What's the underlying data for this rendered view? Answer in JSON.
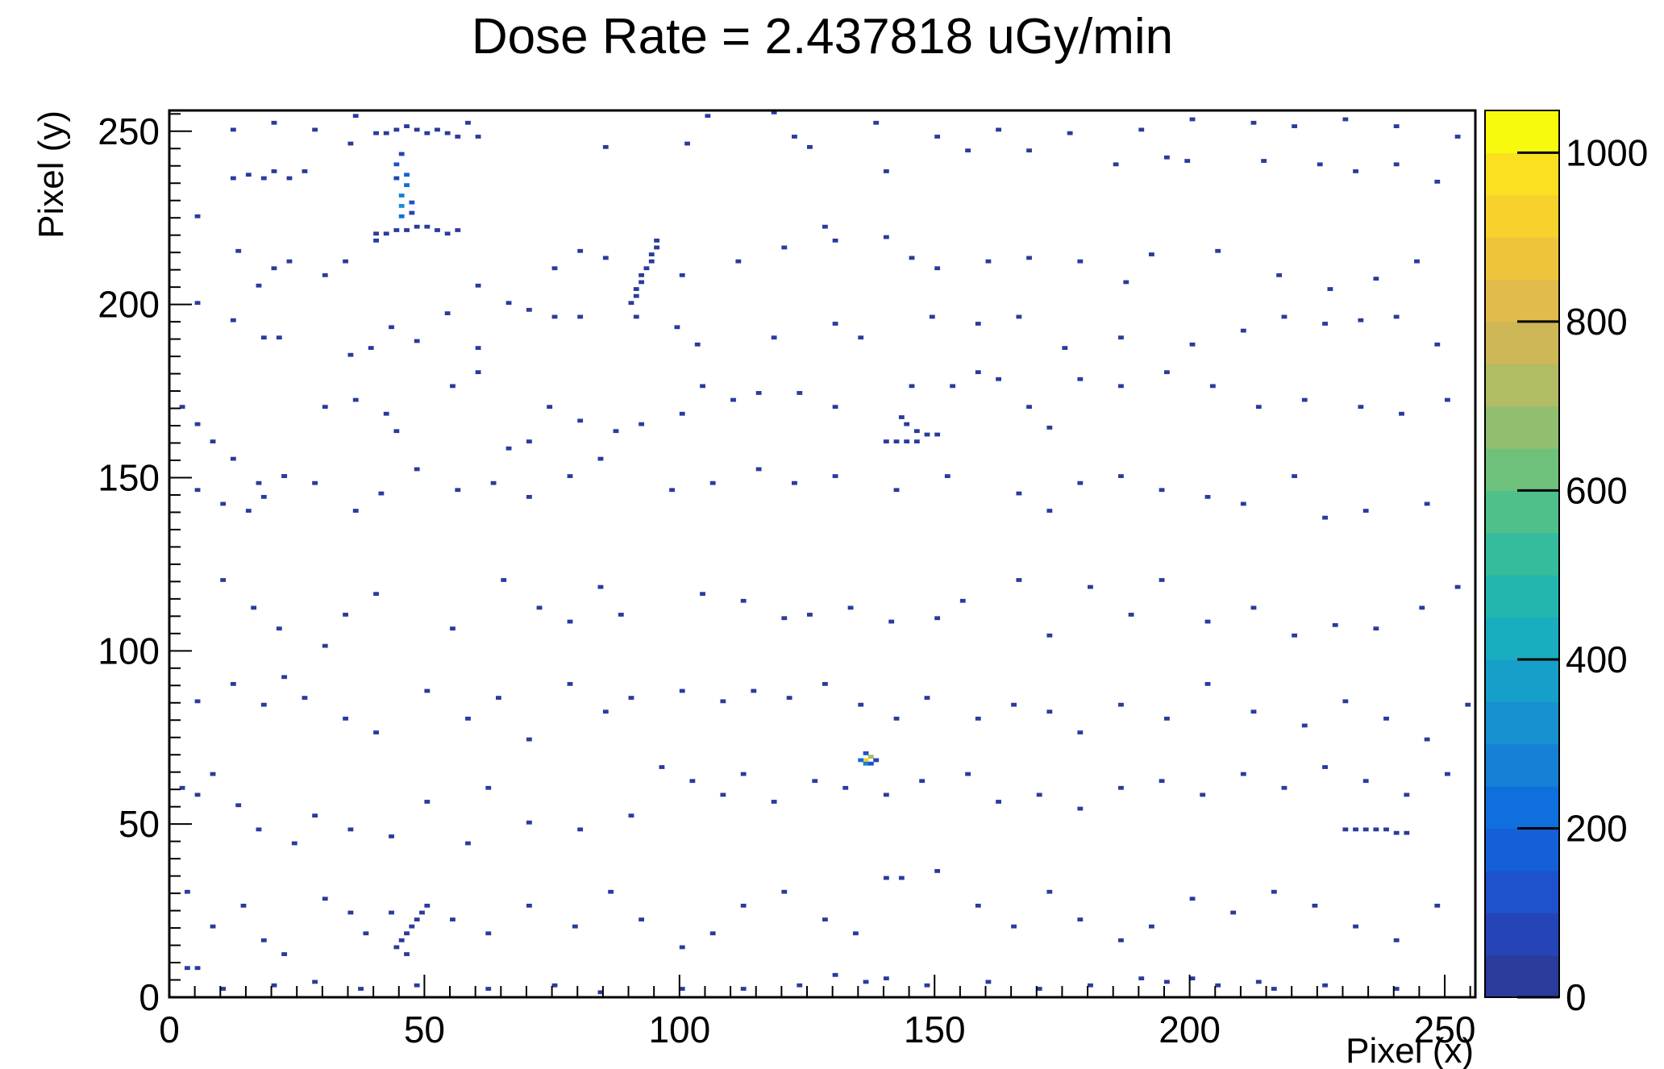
{
  "chart_data": {
    "type": "heatmap",
    "title": "Dose Rate = 2.437818 uGy/min",
    "xlabel": "Pixel (x)",
    "ylabel": "Pixel (y)",
    "xlim": [
      0,
      256
    ],
    "ylim": [
      0,
      256
    ],
    "x_ticks": [
      0,
      50,
      100,
      150,
      200,
      250
    ],
    "y_ticks": [
      0,
      50,
      100,
      150,
      200,
      250
    ],
    "x_tick_labels": [
      "0",
      "50",
      "100",
      "150",
      "200",
      "250"
    ],
    "y_tick_labels": [
      "0",
      "50",
      "100",
      "150",
      "200",
      "250"
    ],
    "colorbar": {
      "zlim": [
        0,
        1050
      ],
      "ticks": [
        0,
        200,
        400,
        600,
        800,
        1000
      ],
      "tick_labels": [
        "0",
        "200",
        "400",
        "600",
        "800",
        "1000"
      ],
      "palette": [
        "#2a3b9c",
        "#2444b8",
        "#1d52cc",
        "#1560d8",
        "#0f6fdc",
        "#1480d6",
        "#1790cf",
        "#169fc9",
        "#1aacbf",
        "#22b6ae",
        "#34bc9c",
        "#4fc08a",
        "#6ec17b",
        "#91bf6f",
        "#b1bc63",
        "#cdb757",
        "#e1bb4c",
        "#efc43d",
        "#f8d12d",
        "#fbe01f",
        "#f8fa0e"
      ]
    },
    "grid": false,
    "legend": "none",
    "points": [
      [
        45,
        225,
        220
      ],
      [
        45,
        228,
        300
      ],
      [
        45,
        231,
        260
      ],
      [
        46,
        234,
        230
      ],
      [
        46,
        237,
        180
      ],
      [
        44,
        240,
        140
      ],
      [
        47,
        226,
        90
      ],
      [
        47,
        229,
        120
      ],
      [
        45,
        243,
        60
      ],
      [
        44,
        236,
        80
      ],
      [
        136,
        68,
        900
      ],
      [
        137,
        69,
        700
      ],
      [
        136,
        67,
        260
      ],
      [
        135,
        68,
        200
      ],
      [
        137,
        67,
        140
      ],
      [
        136,
        70,
        120
      ],
      [
        138,
        68,
        90
      ],
      [
        50,
        249
      ],
      [
        52,
        250
      ],
      [
        48,
        250
      ],
      [
        46,
        251
      ],
      [
        44,
        250
      ],
      [
        42,
        249
      ],
      [
        54,
        249
      ],
      [
        56,
        248
      ],
      [
        40,
        249
      ],
      [
        48,
        222
      ],
      [
        50,
        222
      ],
      [
        52,
        221
      ],
      [
        54,
        220
      ],
      [
        56,
        221
      ],
      [
        44,
        221
      ],
      [
        46,
        221
      ],
      [
        42,
        220
      ],
      [
        40,
        220
      ],
      [
        95,
        216
      ],
      [
        94,
        214
      ],
      [
        94,
        212
      ],
      [
        93,
        210
      ],
      [
        92,
        208
      ],
      [
        92,
        206
      ],
      [
        91,
        204
      ],
      [
        91,
        202
      ],
      [
        90,
        200
      ],
      [
        95,
        218
      ],
      [
        50,
        26
      ],
      [
        49,
        24
      ],
      [
        48,
        22
      ],
      [
        47,
        20
      ],
      [
        46,
        18
      ],
      [
        45,
        16
      ],
      [
        44,
        14
      ],
      [
        43,
        24
      ],
      [
        46,
        12
      ],
      [
        230,
        48
      ],
      [
        232,
        48
      ],
      [
        234,
        48
      ],
      [
        236,
        48
      ],
      [
        238,
        48
      ],
      [
        240,
        47
      ],
      [
        242,
        47
      ],
      [
        144,
        165
      ],
      [
        146,
        163
      ],
      [
        148,
        162
      ],
      [
        150,
        162
      ],
      [
        146,
        160
      ],
      [
        144,
        160
      ],
      [
        142,
        160
      ],
      [
        140,
        160
      ],
      [
        143,
        167
      ],
      [
        12,
        250
      ],
      [
        20,
        252
      ],
      [
        28,
        250
      ],
      [
        36,
        254
      ],
      [
        58,
        252
      ],
      [
        105,
        254
      ],
      [
        118,
        255
      ],
      [
        122,
        248
      ],
      [
        138,
        252
      ],
      [
        150,
        248
      ],
      [
        162,
        250
      ],
      [
        176,
        249
      ],
      [
        190,
        250
      ],
      [
        200,
        253
      ],
      [
        212,
        252
      ],
      [
        220,
        251
      ],
      [
        230,
        253
      ],
      [
        240,
        251
      ],
      [
        252,
        248
      ],
      [
        12,
        236
      ],
      [
        15,
        237
      ],
      [
        18,
        236
      ],
      [
        20,
        238
      ],
      [
        23,
        236
      ],
      [
        26,
        238
      ],
      [
        35,
        246
      ],
      [
        60,
        248
      ],
      [
        85,
        245
      ],
      [
        101,
        246
      ],
      [
        125,
        245
      ],
      [
        140,
        238
      ],
      [
        156,
        244
      ],
      [
        168,
        244
      ],
      [
        185,
        240
      ],
      [
        195,
        242
      ],
      [
        199,
        241
      ],
      [
        214,
        241
      ],
      [
        225,
        240
      ],
      [
        232,
        238
      ],
      [
        240,
        240
      ],
      [
        248,
        235
      ],
      [
        5,
        225
      ],
      [
        13,
        215
      ],
      [
        17,
        205
      ],
      [
        20,
        210
      ],
      [
        23,
        212
      ],
      [
        30,
        208
      ],
      [
        34,
        212
      ],
      [
        40,
        218
      ],
      [
        60,
        205
      ],
      [
        75,
        210
      ],
      [
        80,
        215
      ],
      [
        85,
        213
      ],
      [
        100,
        208
      ],
      [
        111,
        212
      ],
      [
        120,
        216
      ],
      [
        128,
        222
      ],
      [
        130,
        218
      ],
      [
        140,
        219
      ],
      [
        145,
        213
      ],
      [
        150,
        210
      ],
      [
        160,
        212
      ],
      [
        168,
        213
      ],
      [
        178,
        212
      ],
      [
        187,
        206
      ],
      [
        192,
        214
      ],
      [
        205,
        215
      ],
      [
        217,
        208
      ],
      [
        227,
        204
      ],
      [
        236,
        207
      ],
      [
        244,
        212
      ],
      [
        5,
        200
      ],
      [
        12,
        195
      ],
      [
        18,
        190
      ],
      [
        21,
        190
      ],
      [
        35,
        185
      ],
      [
        39,
        187
      ],
      [
        43,
        193
      ],
      [
        48,
        189
      ],
      [
        54,
        197
      ],
      [
        60,
        187
      ],
      [
        66,
        200
      ],
      [
        70,
        198
      ],
      [
        75,
        196
      ],
      [
        80,
        196
      ],
      [
        91,
        196
      ],
      [
        99,
        193
      ],
      [
        103,
        188
      ],
      [
        118,
        190
      ],
      [
        130,
        194
      ],
      [
        135,
        190
      ],
      [
        149,
        196
      ],
      [
        158,
        194
      ],
      [
        166,
        196
      ],
      [
        175,
        187
      ],
      [
        186,
        190
      ],
      [
        200,
        188
      ],
      [
        210,
        192
      ],
      [
        218,
        196
      ],
      [
        226,
        194
      ],
      [
        233,
        195
      ],
      [
        240,
        196
      ],
      [
        248,
        188
      ],
      [
        2,
        170
      ],
      [
        5,
        165
      ],
      [
        8,
        160
      ],
      [
        12,
        155
      ],
      [
        17,
        148
      ],
      [
        18,
        144
      ],
      [
        22,
        150
      ],
      [
        30,
        170
      ],
      [
        36,
        172
      ],
      [
        42,
        168
      ],
      [
        44,
        163
      ],
      [
        55,
        176
      ],
      [
        60,
        180
      ],
      [
        66,
        158
      ],
      [
        70,
        160
      ],
      [
        74,
        170
      ],
      [
        80,
        166
      ],
      [
        87,
        163
      ],
      [
        92,
        165
      ],
      [
        100,
        168
      ],
      [
        104,
        176
      ],
      [
        110,
        172
      ],
      [
        115,
        174
      ],
      [
        123,
        174
      ],
      [
        130,
        170
      ],
      [
        145,
        176
      ],
      [
        153,
        176
      ],
      [
        158,
        180
      ],
      [
        162,
        178
      ],
      [
        168,
        170
      ],
      [
        172,
        164
      ],
      [
        178,
        178
      ],
      [
        186,
        176
      ],
      [
        195,
        180
      ],
      [
        204,
        176
      ],
      [
        213,
        170
      ],
      [
        222,
        172
      ],
      [
        233,
        170
      ],
      [
        241,
        168
      ],
      [
        250,
        172
      ],
      [
        5,
        146
      ],
      [
        10,
        142
      ],
      [
        15,
        140
      ],
      [
        22,
        150
      ],
      [
        28,
        148
      ],
      [
        36,
        140
      ],
      [
        41,
        145
      ],
      [
        48,
        152
      ],
      [
        56,
        146
      ],
      [
        63,
        148
      ],
      [
        70,
        144
      ],
      [
        78,
        150
      ],
      [
        84,
        155
      ],
      [
        98,
        146
      ],
      [
        106,
        148
      ],
      [
        115,
        152
      ],
      [
        122,
        148
      ],
      [
        130,
        150
      ],
      [
        142,
        146
      ],
      [
        152,
        150
      ],
      [
        166,
        145
      ],
      [
        172,
        140
      ],
      [
        178,
        148
      ],
      [
        186,
        150
      ],
      [
        194,
        146
      ],
      [
        203,
        144
      ],
      [
        210,
        142
      ],
      [
        220,
        150
      ],
      [
        226,
        138
      ],
      [
        234,
        140
      ],
      [
        246,
        142
      ],
      [
        10,
        120
      ],
      [
        16,
        112
      ],
      [
        21,
        106
      ],
      [
        30,
        101
      ],
      [
        34,
        110
      ],
      [
        40,
        116
      ],
      [
        55,
        106
      ],
      [
        65,
        120
      ],
      [
        72,
        112
      ],
      [
        78,
        108
      ],
      [
        84,
        118
      ],
      [
        88,
        110
      ],
      [
        104,
        116
      ],
      [
        112,
        114
      ],
      [
        120,
        109
      ],
      [
        125,
        110
      ],
      [
        133,
        112
      ],
      [
        141,
        108
      ],
      [
        150,
        109
      ],
      [
        155,
        114
      ],
      [
        166,
        120
      ],
      [
        172,
        104
      ],
      [
        180,
        118
      ],
      [
        188,
        110
      ],
      [
        194,
        120
      ],
      [
        203,
        108
      ],
      [
        212,
        112
      ],
      [
        220,
        104
      ],
      [
        228,
        107
      ],
      [
        236,
        106
      ],
      [
        245,
        112
      ],
      [
        252,
        118
      ],
      [
        5,
        85
      ],
      [
        12,
        90
      ],
      [
        18,
        84
      ],
      [
        22,
        92
      ],
      [
        26,
        86
      ],
      [
        34,
        80
      ],
      [
        40,
        76
      ],
      [
        50,
        88
      ],
      [
        58,
        80
      ],
      [
        64,
        86
      ],
      [
        70,
        74
      ],
      [
        78,
        90
      ],
      [
        85,
        82
      ],
      [
        90,
        86
      ],
      [
        100,
        88
      ],
      [
        108,
        85
      ],
      [
        114,
        88
      ],
      [
        121,
        86
      ],
      [
        128,
        90
      ],
      [
        135,
        84
      ],
      [
        142,
        80
      ],
      [
        148,
        86
      ],
      [
        158,
        80
      ],
      [
        165,
        84
      ],
      [
        172,
        82
      ],
      [
        178,
        76
      ],
      [
        186,
        84
      ],
      [
        195,
        80
      ],
      [
        203,
        90
      ],
      [
        212,
        82
      ],
      [
        222,
        78
      ],
      [
        230,
        85
      ],
      [
        238,
        80
      ],
      [
        246,
        74
      ],
      [
        254,
        84
      ],
      [
        2,
        60
      ],
      [
        5,
        58
      ],
      [
        8,
        64
      ],
      [
        13,
        55
      ],
      [
        17,
        48
      ],
      [
        24,
        44
      ],
      [
        28,
        52
      ],
      [
        35,
        48
      ],
      [
        43,
        46
      ],
      [
        50,
        56
      ],
      [
        58,
        44
      ],
      [
        62,
        60
      ],
      [
        70,
        50
      ],
      [
        80,
        48
      ],
      [
        90,
        52
      ],
      [
        96,
        66
      ],
      [
        102,
        62
      ],
      [
        108,
        58
      ],
      [
        112,
        64
      ],
      [
        118,
        56
      ],
      [
        126,
        62
      ],
      [
        132,
        60
      ],
      [
        140,
        58
      ],
      [
        147,
        62
      ],
      [
        156,
        64
      ],
      [
        162,
        56
      ],
      [
        170,
        58
      ],
      [
        178,
        54
      ],
      [
        186,
        60
      ],
      [
        194,
        62
      ],
      [
        202,
        58
      ],
      [
        210,
        64
      ],
      [
        218,
        60
      ],
      [
        226,
        66
      ],
      [
        234,
        62
      ],
      [
        242,
        58
      ],
      [
        250,
        64
      ],
      [
        3,
        30
      ],
      [
        8,
        20
      ],
      [
        14,
        26
      ],
      [
        18,
        16
      ],
      [
        22,
        12
      ],
      [
        30,
        28
      ],
      [
        35,
        24
      ],
      [
        38,
        18
      ],
      [
        55,
        22
      ],
      [
        62,
        18
      ],
      [
        70,
        26
      ],
      [
        79,
        20
      ],
      [
        86,
        30
      ],
      [
        92,
        22
      ],
      [
        100,
        14
      ],
      [
        106,
        18
      ],
      [
        112,
        26
      ],
      [
        120,
        30
      ],
      [
        128,
        22
      ],
      [
        134,
        18
      ],
      [
        140,
        34
      ],
      [
        143,
        34
      ],
      [
        150,
        36
      ],
      [
        158,
        26
      ],
      [
        165,
        20
      ],
      [
        172,
        30
      ],
      [
        178,
        22
      ],
      [
        186,
        16
      ],
      [
        192,
        20
      ],
      [
        200,
        28
      ],
      [
        208,
        24
      ],
      [
        216,
        30
      ],
      [
        224,
        26
      ],
      [
        232,
        20
      ],
      [
        240,
        16
      ],
      [
        248,
        26
      ],
      [
        3,
        8
      ],
      [
        5,
        8
      ],
      [
        10,
        2
      ],
      [
        20,
        3
      ],
      [
        28,
        4
      ],
      [
        37,
        2
      ],
      [
        48,
        3
      ],
      [
        62,
        2
      ],
      [
        75,
        3
      ],
      [
        84,
        1
      ],
      [
        100,
        2
      ],
      [
        112,
        2
      ],
      [
        123,
        3
      ],
      [
        130,
        6
      ],
      [
        136,
        4
      ],
      [
        140,
        5
      ],
      [
        148,
        3
      ],
      [
        160,
        4
      ],
      [
        170,
        2
      ],
      [
        180,
        3
      ],
      [
        190,
        5
      ],
      [
        195,
        4
      ],
      [
        200,
        5
      ],
      [
        205,
        3
      ],
      [
        213,
        4
      ],
      [
        216,
        2
      ],
      [
        226,
        3
      ],
      [
        240,
        2
      ]
    ]
  }
}
